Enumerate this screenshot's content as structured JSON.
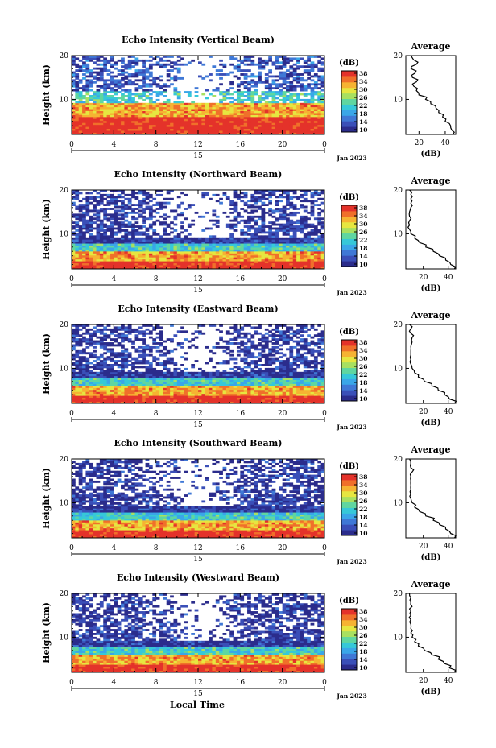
{
  "figure": {
    "xlabel": "Local Time",
    "date_label": "Jan 2023",
    "day_label": "15",
    "colorbar_unit": "(dB)",
    "colorbar_ticks": [
      "10",
      "14",
      "18",
      "22",
      "26",
      "30",
      "34",
      "38"
    ],
    "colorbar_colors": [
      "#2b2c8c",
      "#3a4fb8",
      "#3f78d6",
      "#3aa6e8",
      "#36c8d8",
      "#5fd6a0",
      "#a8e060",
      "#e6e640",
      "#f6b332",
      "#f0702a",
      "#e4322a"
    ],
    "profile_title": "Average",
    "profile_xlabel": "(dB)"
  },
  "chart_data": [
    {
      "type": "heatmap",
      "title": "Echo Intensity (Vertical Beam)",
      "xlabel": "Local Time",
      "ylabel": "Height (km)",
      "x_ticks": [
        "0",
        "4",
        "8",
        "12",
        "16",
        "20",
        "0"
      ],
      "xlim": [
        0,
        24
      ],
      "y_ticks": [
        "10",
        "20"
      ],
      "ylim": [
        2,
        20
      ],
      "colorbar_range_dB": [
        10,
        38
      ],
      "layers_dB_by_height": [
        {
          "height_km": [
            2,
            6
          ],
          "dB": 38
        },
        {
          "height_km": [
            6,
            9
          ],
          "dB": 32
        },
        {
          "height_km": [
            9,
            12
          ],
          "dB": 22
        },
        {
          "height_km": [
            12,
            20
          ],
          "dB": 14
        }
      ],
      "profile": {
        "title": "Average",
        "xlabel": "(dB)",
        "x_ticks": [
          "20",
          "40"
        ],
        "y_ticks": [
          "10",
          "20"
        ],
        "xlim": [
          10,
          48
        ],
        "ylim": [
          2,
          20
        ],
        "height_km": [
          2,
          3,
          4,
          5,
          6,
          7,
          8,
          9,
          10,
          11,
          12,
          13,
          14,
          15,
          16,
          17,
          18,
          19,
          20
        ],
        "dB": [
          46,
          45,
          44,
          40,
          38,
          35,
          33,
          29,
          25,
          20,
          18,
          16,
          18,
          15,
          17,
          14,
          18,
          16,
          14
        ]
      }
    },
    {
      "type": "heatmap",
      "title": "Echo Intensity (Northward Beam)",
      "xlabel": "Local Time",
      "ylabel": "Height (km)",
      "x_ticks": [
        "0",
        "4",
        "8",
        "12",
        "16",
        "20",
        "0"
      ],
      "xlim": [
        0,
        24
      ],
      "y_ticks": [
        "10",
        "20"
      ],
      "ylim": [
        2,
        20
      ],
      "colorbar_range_dB": [
        10,
        38
      ],
      "layers_dB_by_height": [
        {
          "height_km": [
            2,
            4
          ],
          "dB": 38
        },
        {
          "height_km": [
            4,
            6
          ],
          "dB": 32
        },
        {
          "height_km": [
            6,
            8
          ],
          "dB": 22
        },
        {
          "height_km": [
            8,
            20
          ],
          "dB": 12
        }
      ],
      "profile": {
        "title": "Average",
        "xlabel": "(dB)",
        "x_ticks": [
          "20",
          "40"
        ],
        "y_ticks": [
          "10",
          "20"
        ],
        "xlim": [
          6,
          46
        ],
        "ylim": [
          2,
          20
        ],
        "height_km": [
          2,
          3,
          4,
          5,
          6,
          7,
          8,
          9,
          10,
          11,
          12,
          13,
          14,
          15,
          16,
          17,
          18,
          19,
          20
        ],
        "dB": [
          45,
          42,
          38,
          33,
          28,
          22,
          17,
          13,
          10,
          9,
          9,
          9,
          9,
          9,
          10,
          10,
          10,
          10,
          9
        ]
      }
    },
    {
      "type": "heatmap",
      "title": "Echo Intensity (Eastward Beam)",
      "xlabel": "Local Time",
      "ylabel": "Height (km)",
      "x_ticks": [
        "0",
        "4",
        "8",
        "12",
        "16",
        "20",
        "0"
      ],
      "xlim": [
        0,
        24
      ],
      "y_ticks": [
        "10",
        "20"
      ],
      "ylim": [
        2,
        20
      ],
      "colorbar_range_dB": [
        10,
        38
      ],
      "layers_dB_by_height": [
        {
          "height_km": [
            2,
            4
          ],
          "dB": 38
        },
        {
          "height_km": [
            4,
            6
          ],
          "dB": 32
        },
        {
          "height_km": [
            6,
            8
          ],
          "dB": 22
        },
        {
          "height_km": [
            8,
            20
          ],
          "dB": 12
        }
      ],
      "profile": {
        "title": "Average",
        "xlabel": "(dB)",
        "x_ticks": [
          "20",
          "40"
        ],
        "y_ticks": [
          "10",
          "20"
        ],
        "xlim": [
          6,
          46
        ],
        "ylim": [
          2,
          20
        ],
        "height_km": [
          2,
          3,
          4,
          5,
          6,
          7,
          8,
          9,
          10,
          11,
          12,
          13,
          14,
          15,
          16,
          17,
          18,
          19,
          20
        ],
        "dB": [
          45,
          41,
          37,
          32,
          27,
          21,
          16,
          13,
          11,
          10,
          10,
          10,
          10,
          10,
          11,
          11,
          10,
          10,
          9
        ]
      }
    },
    {
      "type": "heatmap",
      "title": "Echo Intensity (Southward Beam)",
      "xlabel": "Local Time",
      "ylabel": "Height (km)",
      "x_ticks": [
        "0",
        "4",
        "8",
        "12",
        "16",
        "20",
        "0"
      ],
      "xlim": [
        0,
        24
      ],
      "y_ticks": [
        "10",
        "20"
      ],
      "ylim": [
        2,
        20
      ],
      "colorbar_range_dB": [
        10,
        38
      ],
      "layers_dB_by_height": [
        {
          "height_km": [
            2,
            4
          ],
          "dB": 38
        },
        {
          "height_km": [
            4,
            6
          ],
          "dB": 32
        },
        {
          "height_km": [
            6,
            8
          ],
          "dB": 22
        },
        {
          "height_km": [
            8,
            20
          ],
          "dB": 12
        }
      ],
      "profile": {
        "title": "Average",
        "xlabel": "(dB)",
        "x_ticks": [
          "20",
          "40"
        ],
        "y_ticks": [
          "10",
          "20"
        ],
        "xlim": [
          6,
          46
        ],
        "ylim": [
          2,
          20
        ],
        "height_km": [
          2,
          3,
          4,
          5,
          6,
          7,
          8,
          9,
          10,
          11,
          12,
          13,
          14,
          15,
          16,
          17,
          18,
          19,
          20
        ],
        "dB": [
          45,
          42,
          38,
          33,
          28,
          22,
          17,
          13,
          11,
          10,
          10,
          10,
          10,
          10,
          10,
          11,
          10,
          10,
          9
        ]
      }
    },
    {
      "type": "heatmap",
      "title": "Echo Intensity (Westward Beam)",
      "xlabel": "Local Time",
      "ylabel": "Height (km)",
      "x_ticks": [
        "0",
        "4",
        "8",
        "12",
        "16",
        "20",
        "0"
      ],
      "xlim": [
        0,
        24
      ],
      "y_ticks": [
        "10",
        "20"
      ],
      "ylim": [
        2,
        20
      ],
      "colorbar_range_dB": [
        10,
        38
      ],
      "layers_dB_by_height": [
        {
          "height_km": [
            2,
            4
          ],
          "dB": 38
        },
        {
          "height_km": [
            4,
            6
          ],
          "dB": 32
        },
        {
          "height_km": [
            6,
            8
          ],
          "dB": 22
        },
        {
          "height_km": [
            8,
            20
          ],
          "dB": 12
        }
      ],
      "profile": {
        "title": "Average",
        "xlabel": "(dB)",
        "x_ticks": [
          "20",
          "40"
        ],
        "y_ticks": [
          "10",
          "20"
        ],
        "xlim": [
          6,
          46
        ],
        "ylim": [
          2,
          20
        ],
        "height_km": [
          2,
          3,
          4,
          5,
          6,
          7,
          8,
          9,
          10,
          11,
          12,
          13,
          14,
          15,
          16,
          17,
          18,
          19,
          20
        ],
        "dB": [
          45,
          41,
          37,
          32,
          27,
          21,
          16,
          13,
          11,
          10,
          10,
          10,
          10,
          10,
          10,
          11,
          10,
          10,
          9
        ]
      }
    }
  ]
}
